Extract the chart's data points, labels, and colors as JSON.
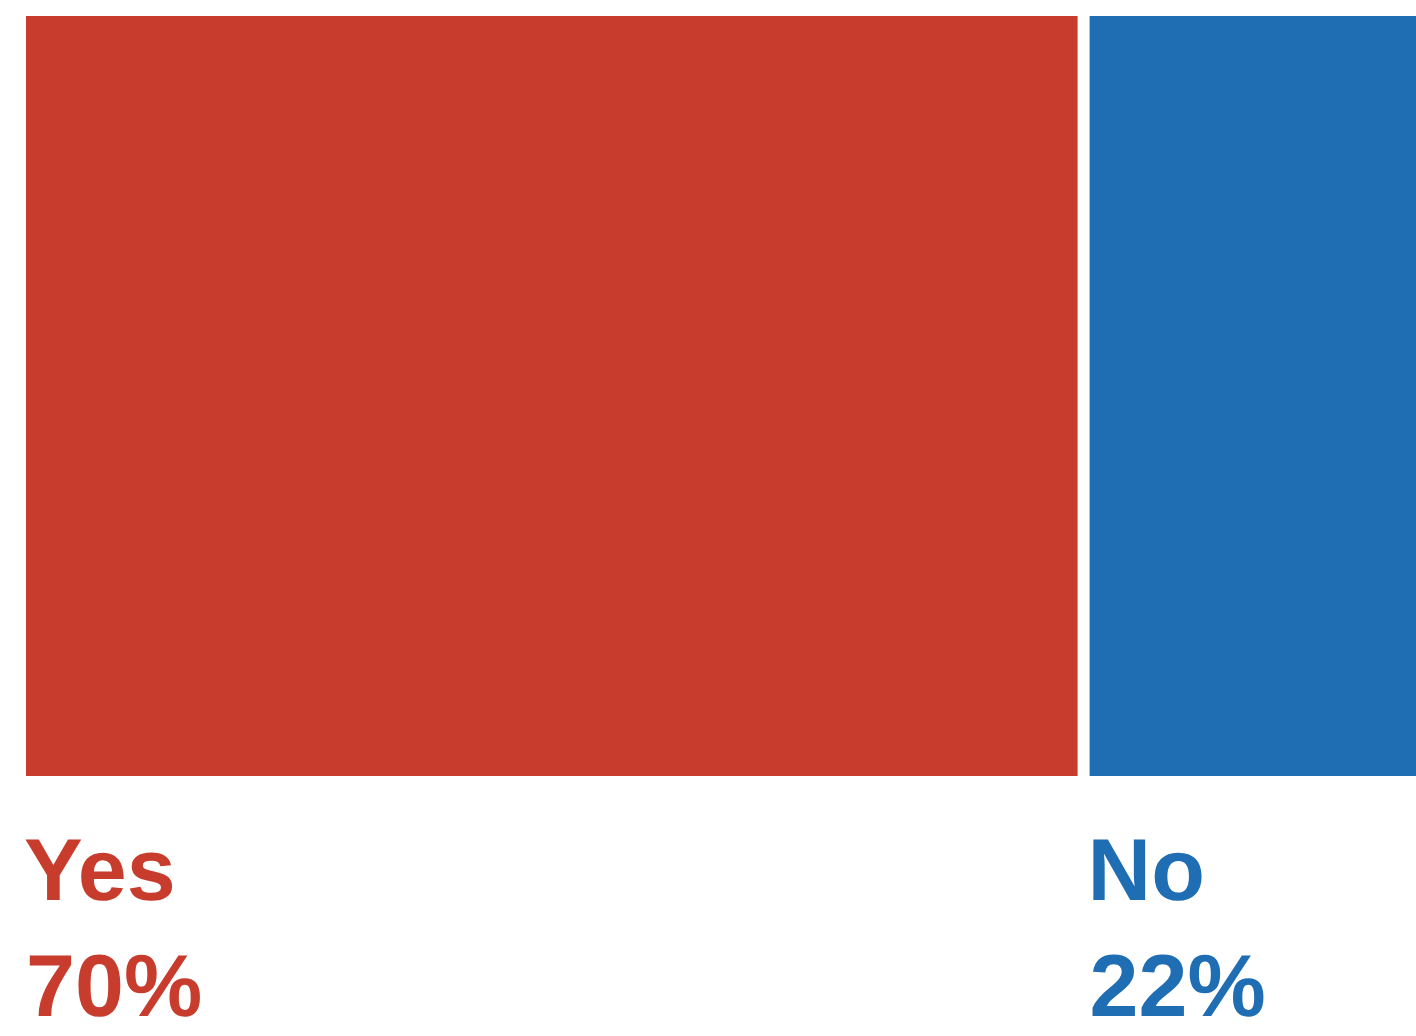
{
  "chart_data": {
    "type": "other",
    "categories": [
      "Yes",
      "No"
    ],
    "values": [
      70,
      22
    ],
    "value_labels": [
      "70%",
      "22%"
    ],
    "colors": [
      "#c83c2e",
      "#1f6db3"
    ]
  }
}
